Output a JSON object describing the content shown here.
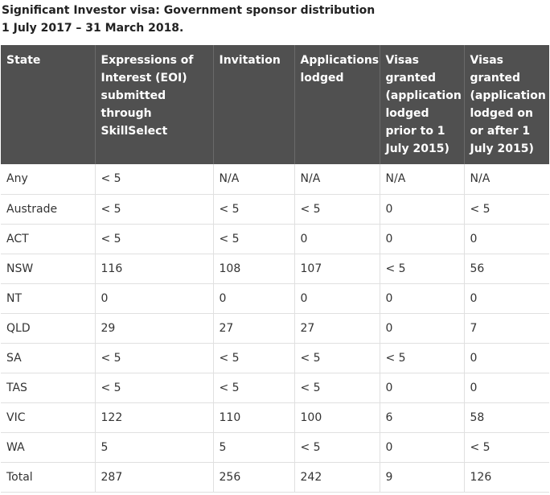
{
  "title": {
    "line1": "Significant Investor visa: Government sponsor distribution",
    "line2": "1 July 2017 – 31 March 2018."
  },
  "table": {
    "headers": [
      "State",
      "Expressions of Interest (EOI) submitted through SkillSelect",
      "Invitation",
      "Applications lodged",
      "Visas granted (application lodged prior to 1 July 2015)",
      "Visas granted (application lodged on or after 1 July 2015)"
    ],
    "rows": [
      [
        "Any",
        "< 5",
        "N/A",
        "N/A",
        "N/A",
        "N/A"
      ],
      [
        "Austrade",
        "< 5",
        "< 5",
        "< 5",
        "0",
        "< 5"
      ],
      [
        "ACT",
        "< 5",
        "< 5",
        "0",
        "0",
        "0"
      ],
      [
        "NSW",
        "116",
        "108",
        "107",
        "< 5",
        "56"
      ],
      [
        "NT",
        "0",
        "0",
        "0",
        "0",
        "0"
      ],
      [
        "QLD",
        "29",
        "27",
        "27",
        "0",
        "7"
      ],
      [
        "SA",
        "< 5",
        "< 5",
        "< 5",
        "< 5",
        "0"
      ],
      [
        "TAS",
        "< 5",
        "< 5",
        "< 5",
        "0",
        "0"
      ],
      [
        "VIC",
        "122",
        "110",
        "100",
        "6",
        "58"
      ],
      [
        "WA",
        "5",
        "5",
        "< 5",
        "0",
        "< 5"
      ],
      [
        "Total",
        "287",
        "256",
        "242",
        "9",
        "126"
      ]
    ]
  },
  "colors": {
    "header_background": "#505050",
    "header_text": "#ffffff",
    "body_text": "#333333",
    "grid_line": "#e0e0e0"
  }
}
